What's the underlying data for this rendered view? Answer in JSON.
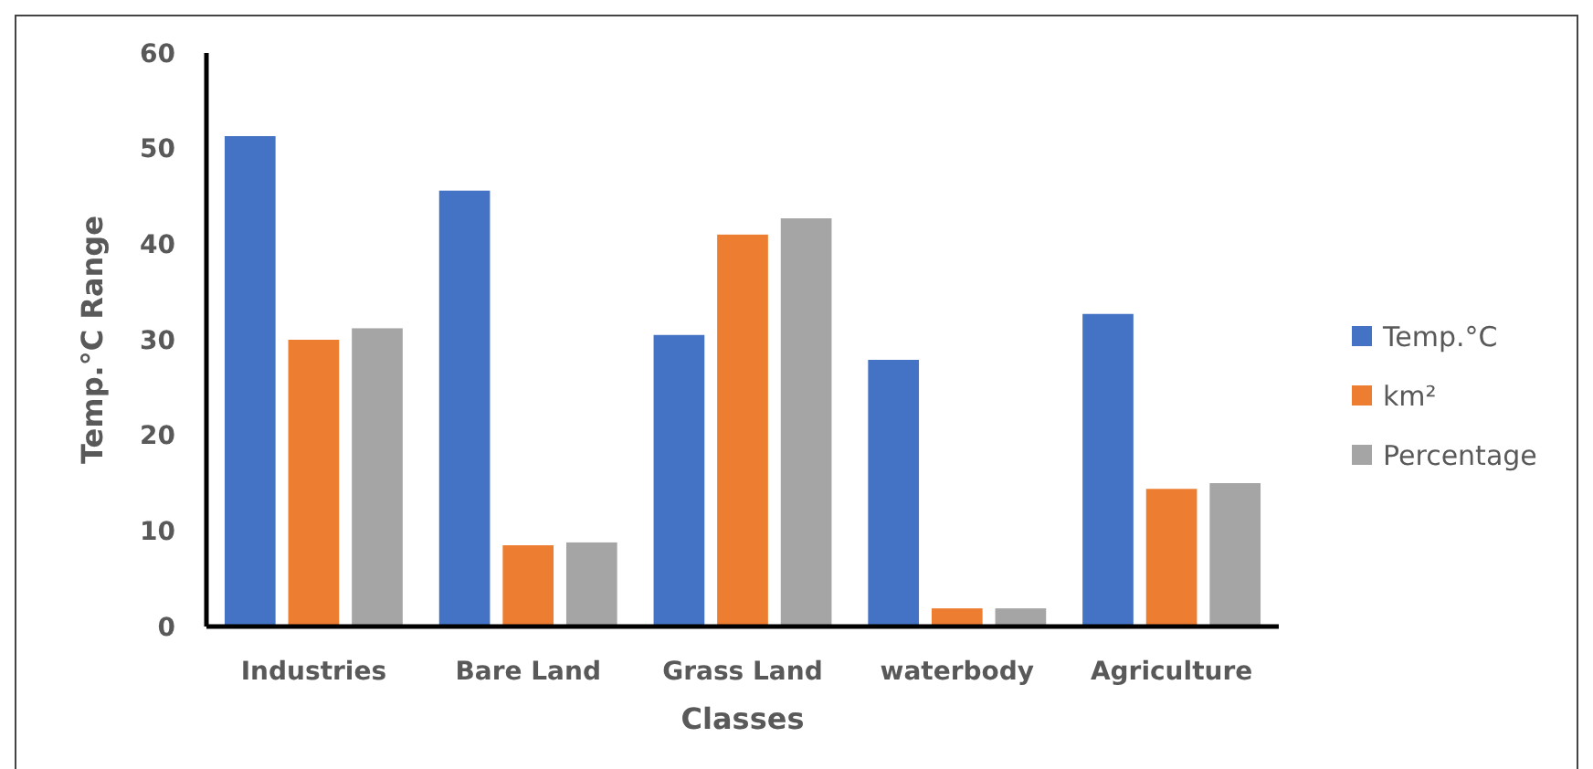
{
  "chart_data": {
    "type": "bar",
    "xlabel": "Classes",
    "ylabel": "Temp.°C Range",
    "categories": [
      "Industries",
      "Bare Land",
      "Grass Land",
      "waterbody",
      "Agriculture"
    ],
    "series": [
      {
        "name": "Temp.°C",
        "color": "#4472c4",
        "values": [
          51.3,
          45.6,
          30.5,
          27.9,
          32.7
        ]
      },
      {
        "name": "km²",
        "color": "#ed7d31",
        "values": [
          30.0,
          8.5,
          41.0,
          1.9,
          14.4
        ]
      },
      {
        "name": "Percentage",
        "color": "#a5a5a5",
        "values": [
          31.2,
          8.8,
          42.7,
          1.9,
          15.0
        ]
      }
    ],
    "ylim": [
      0,
      60
    ],
    "yticks": [
      0,
      10,
      20,
      30,
      40,
      50,
      60
    ],
    "grid": false,
    "legend": "right"
  }
}
